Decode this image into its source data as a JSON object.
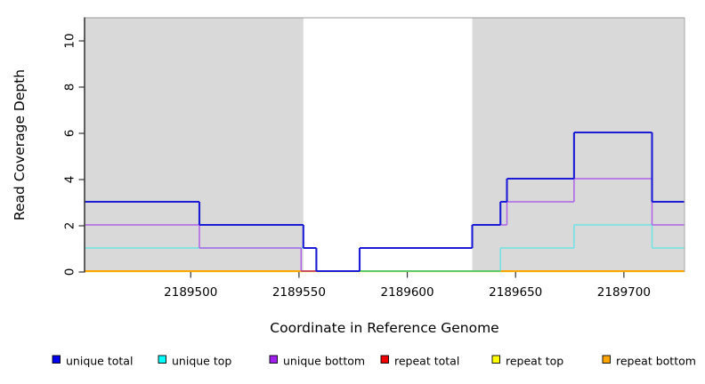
{
  "chart_data": {
    "type": "line",
    "subtype": "step-post-coverage",
    "title": "",
    "xlabel": "Coordinate in Reference Genome",
    "ylabel": "Read Coverage Depth",
    "xlim": [
      2189451,
      2189728
    ],
    "ylim": [
      0,
      11
    ],
    "xticks": [
      2189500,
      2189550,
      2189600,
      2189650,
      2189700
    ],
    "yticks": [
      0,
      2,
      4,
      6,
      8,
      10
    ],
    "grid": false,
    "shaded_regions": [
      {
        "x0": 2189451,
        "x1": 2189552,
        "color": "#d9d9d9"
      },
      {
        "x0": 2189630,
        "x1": 2189728,
        "color": "#d9d9d9"
      }
    ],
    "series": [
      {
        "name": "unique total",
        "color": "#1c1cd6",
        "line_width": 2.1,
        "steps": [
          [
            2189451,
            3
          ],
          [
            2189504,
            2
          ],
          [
            2189552,
            1
          ],
          [
            2189558,
            0
          ],
          [
            2189578,
            1
          ],
          [
            2189630,
            2
          ],
          [
            2189643,
            3
          ],
          [
            2189646,
            4
          ],
          [
            2189677,
            6
          ],
          [
            2189713,
            3
          ],
          [
            2189728,
            3
          ]
        ]
      },
      {
        "name": "unique top",
        "color": "#6fe3e3",
        "line_width": 1.5,
        "zero_overlap_color": "#5dc96a",
        "steps": [
          [
            2189451,
            1
          ],
          [
            2189558,
            0
          ],
          [
            2189643,
            1
          ],
          [
            2189677,
            2
          ],
          [
            2189713,
            1
          ],
          [
            2189728,
            1
          ]
        ]
      },
      {
        "name": "unique bottom",
        "color": "#ad63e8",
        "line_width": 1.5,
        "zero_overlap_color": "#c94f5f",
        "steps": [
          [
            2189451,
            2
          ],
          [
            2189504,
            1
          ],
          [
            2189551,
            0
          ],
          [
            2189578,
            1
          ],
          [
            2189630,
            2
          ],
          [
            2189646,
            3
          ],
          [
            2189677,
            4
          ],
          [
            2189713,
            2
          ],
          [
            2189728,
            2
          ]
        ]
      },
      {
        "name": "repeat total",
        "color": "#e00000",
        "line_width": 1.4,
        "steps": [
          [
            2189451,
            0
          ],
          [
            2189728,
            0
          ]
        ]
      },
      {
        "name": "repeat top",
        "color": "#f5f07a",
        "line_width": 1.4,
        "steps": [
          [
            2189451,
            0
          ],
          [
            2189728,
            0
          ]
        ]
      },
      {
        "name": "repeat bottom",
        "color": "#ffa500",
        "line_width": 2.0,
        "steps": [
          [
            2189451,
            0
          ],
          [
            2189728,
            0
          ]
        ]
      }
    ],
    "legend": {
      "position": "bottom",
      "entries": [
        {
          "label": "unique total",
          "swatch_color": "#0000ee"
        },
        {
          "label": "unique top",
          "swatch_color": "#00ffff"
        },
        {
          "label": "unique bottom",
          "swatch_color": "#a020f0"
        },
        {
          "label": "repeat total",
          "swatch_color": "#ee0000"
        },
        {
          "label": "repeat top",
          "swatch_color": "#ffff00"
        },
        {
          "label": "repeat bottom",
          "swatch_color": "#ffa500"
        }
      ]
    }
  }
}
